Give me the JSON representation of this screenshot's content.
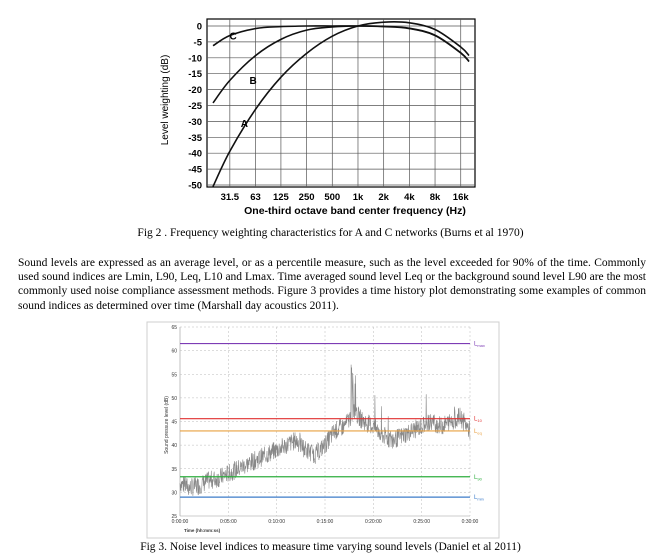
{
  "figure1": {
    "caption": "Fig 2 . Frequency weighting characteristics for A and C networks (Burns et al 1970)",
    "chart_data": {
      "type": "line",
      "xlabel": "One-third octave band center frequency (Hz)",
      "ylabel": "Level weighting (dB)",
      "x_ticks": [
        "31.5",
        "63",
        "125",
        "250",
        "500",
        "1k",
        "2k",
        "4k",
        "8k",
        "16k"
      ],
      "y_ticks": [
        "0",
        "-5",
        "-10",
        "-15",
        "-20",
        "-25",
        "-30",
        "-35",
        "-40",
        "-45",
        "-50"
      ],
      "ylim": [
        -50,
        0
      ],
      "grid": true,
      "series": [
        {
          "name": "A",
          "x": [
            20,
            31.5,
            63,
            125,
            250,
            500,
            1000,
            2000,
            4000,
            8000,
            16000,
            20000
          ],
          "values": [
            -50.5,
            -39.4,
            -26.2,
            -16.1,
            -8.6,
            -3.2,
            0,
            1.2,
            1.0,
            -1.1,
            -6.6,
            -9.3
          ]
        },
        {
          "name": "B",
          "x": [
            20,
            31.5,
            63,
            125,
            250,
            500,
            1000,
            2000,
            4000,
            8000,
            16000,
            20000
          ],
          "values": [
            -24.2,
            -17.1,
            -9.3,
            -4.2,
            -1.3,
            -0.3,
            0,
            -0.1,
            -0.7,
            -2.9,
            -8.4,
            -11.1
          ]
        },
        {
          "name": "C",
          "x": [
            20,
            31.5,
            63,
            125,
            250,
            500,
            1000,
            2000,
            4000,
            8000,
            16000,
            20000
          ],
          "values": [
            -6.2,
            -3.0,
            -0.8,
            -0.2,
            0,
            0,
            0,
            -0.2,
            -0.8,
            -3.0,
            -8.5,
            -11.2
          ]
        }
      ]
    }
  },
  "paragraph": "Sound levels are expressed as an average level, or as a percentile measure, such as the level exceeded for 90% of the time. Commonly used sound indices are Lmin, L90, Leq, L10 and Lmax. Time averaged sound level Leq or the background sound level L90 are the most commonly used noise compliance assessment methods. Figure 3 provides a time history plot demonstrating some examples of common sound indices as determined over time (Marshall day acoustics 2011).",
  "figure2": {
    "caption": "Fig 3. Noise level indices to measure time varying sound levels (Daniel et al 2011)",
    "chart_data": {
      "type": "line",
      "xlabel": "Time (hh:mm:ss)",
      "ylabel": "Sound pressure level (dB)",
      "x_ticks": [
        "0:00:00",
        "0:05:00",
        "0:10:00",
        "0:15:00",
        "0:20:00",
        "0:25:00",
        "0:30:00"
      ],
      "x_range_minutes": [
        0,
        30
      ],
      "y_ticks": [
        "25",
        "30",
        "35",
        "40",
        "45",
        "50",
        "55",
        "60",
        "65"
      ],
      "ylim": [
        25,
        65
      ],
      "grid": true,
      "levels": [
        {
          "name": "Lmax",
          "label_main": "L",
          "label_sub": "max",
          "value": 61.5,
          "color": "#7d3cb5"
        },
        {
          "name": "L10",
          "label_main": "L",
          "label_sub": "10",
          "value": 45.6,
          "color": "#e03030"
        },
        {
          "name": "Leq",
          "label_main": "L",
          "label_sub": "eq",
          "value": 43.0,
          "color": "#e8a040"
        },
        {
          "name": "L90",
          "label_main": "L",
          "label_sub": "90",
          "value": 33.3,
          "color": "#2eae3e"
        },
        {
          "name": "Lmin",
          "label_main": "L",
          "label_sub": "min",
          "value": 29.0,
          "color": "#3d7cc9"
        }
      ],
      "trace": {
        "color": "#888888",
        "points_min_db": [
          [
            0,
            32
          ],
          [
            1,
            31
          ],
          [
            2,
            31.5
          ],
          [
            3,
            32.5
          ],
          [
            4,
            33
          ],
          [
            5,
            34
          ],
          [
            6,
            35
          ],
          [
            7,
            36
          ],
          [
            8,
            37
          ],
          [
            9,
            38
          ],
          [
            10,
            39
          ],
          [
            11,
            40
          ],
          [
            12,
            41
          ],
          [
            13,
            39
          ],
          [
            14,
            38
          ],
          [
            15,
            40
          ],
          [
            16,
            43
          ],
          [
            17,
            44
          ],
          [
            18,
            47
          ],
          [
            19,
            45
          ],
          [
            20,
            44
          ],
          [
            21,
            42
          ],
          [
            22,
            41
          ],
          [
            23,
            42
          ],
          [
            24,
            43
          ],
          [
            25,
            44
          ],
          [
            26,
            45
          ],
          [
            27,
            44
          ],
          [
            28,
            45
          ],
          [
            29,
            46
          ],
          [
            30,
            43
          ]
        ]
      }
    }
  }
}
